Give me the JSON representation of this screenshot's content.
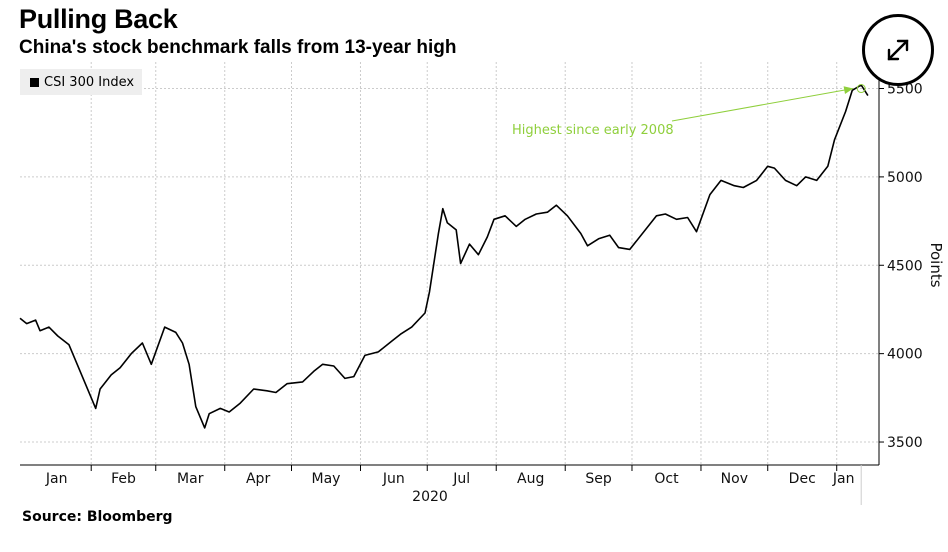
{
  "header": {
    "title": "Pulling Back",
    "subtitle": "China's stock benchmark falls from 13-year high"
  },
  "legend": {
    "label": "CSI 300 Index"
  },
  "footer": {
    "source": "Source: Bloomberg"
  },
  "controls": {
    "expand_icon": "expand-arrows-icon"
  },
  "colors": {
    "line": "#000000",
    "annotation": "#8fcf3c",
    "grid": "#cccccc",
    "legend_bg": "#eeeeee"
  },
  "chart_data": {
    "type": "line",
    "title": "Pulling Back",
    "subtitle": "China's stock benchmark falls from 13-year high",
    "xlabel": "2020",
    "ylabel": "Points",
    "x_ticks": [
      "Jan",
      "Feb",
      "Mar",
      "Apr",
      "May",
      "Jun",
      "Jul",
      "Aug",
      "Sep",
      "Oct",
      "Nov",
      "Dec",
      "Jan"
    ],
    "y_ticks": [
      3500,
      4000,
      4500,
      5000,
      5500
    ],
    "ylim": [
      3370,
      5650
    ],
    "y_axis_side": "right",
    "grid": true,
    "legend_position": "top-left",
    "annotation": {
      "text": "Highest since early 2008",
      "target_x": "2021-01-12",
      "target_y": 5500
    },
    "series": [
      {
        "name": "CSI 300 Index",
        "points": [
          [
            "2019-12-31",
            4200
          ],
          [
            "2020-01-03",
            4170
          ],
          [
            "2020-01-07",
            4190
          ],
          [
            "2020-01-09",
            4130
          ],
          [
            "2020-01-13",
            4150
          ],
          [
            "2020-01-17",
            4100
          ],
          [
            "2020-01-22",
            4050
          ],
          [
            "2020-02-03",
            3690
          ],
          [
            "2020-02-05",
            3800
          ],
          [
            "2020-02-10",
            3880
          ],
          [
            "2020-02-14",
            3920
          ],
          [
            "2020-02-19",
            4000
          ],
          [
            "2020-02-24",
            4060
          ],
          [
            "2020-02-28",
            3940
          ],
          [
            "2020-03-05",
            4150
          ],
          [
            "2020-03-10",
            4120
          ],
          [
            "2020-03-13",
            4060
          ],
          [
            "2020-03-16",
            3940
          ],
          [
            "2020-03-19",
            3700
          ],
          [
            "2020-03-23",
            3580
          ],
          [
            "2020-03-25",
            3660
          ],
          [
            "2020-03-30",
            3690
          ],
          [
            "2020-04-03",
            3670
          ],
          [
            "2020-04-08",
            3720
          ],
          [
            "2020-04-14",
            3800
          ],
          [
            "2020-04-20",
            3790
          ],
          [
            "2020-04-24",
            3780
          ],
          [
            "2020-04-29",
            3830
          ],
          [
            "2020-05-06",
            3840
          ],
          [
            "2020-05-11",
            3900
          ],
          [
            "2020-05-15",
            3940
          ],
          [
            "2020-05-20",
            3930
          ],
          [
            "2020-05-25",
            3860
          ],
          [
            "2020-05-29",
            3870
          ],
          [
            "2020-06-03",
            3990
          ],
          [
            "2020-06-09",
            4010
          ],
          [
            "2020-06-15",
            4070
          ],
          [
            "2020-06-19",
            4110
          ],
          [
            "2020-06-24",
            4150
          ],
          [
            "2020-06-30",
            4230
          ],
          [
            "2020-07-02",
            4350
          ],
          [
            "2020-07-06",
            4680
          ],
          [
            "2020-07-08",
            4820
          ],
          [
            "2020-07-10",
            4740
          ],
          [
            "2020-07-14",
            4700
          ],
          [
            "2020-07-16",
            4510
          ],
          [
            "2020-07-20",
            4620
          ],
          [
            "2020-07-24",
            4560
          ],
          [
            "2020-07-28",
            4660
          ],
          [
            "2020-07-31",
            4760
          ],
          [
            "2020-08-05",
            4780
          ],
          [
            "2020-08-10",
            4720
          ],
          [
            "2020-08-14",
            4760
          ],
          [
            "2020-08-19",
            4790
          ],
          [
            "2020-08-24",
            4800
          ],
          [
            "2020-08-28",
            4840
          ],
          [
            "2020-09-02",
            4780
          ],
          [
            "2020-09-08",
            4680
          ],
          [
            "2020-09-11",
            4610
          ],
          [
            "2020-09-16",
            4650
          ],
          [
            "2020-09-21",
            4670
          ],
          [
            "2020-09-25",
            4600
          ],
          [
            "2020-09-30",
            4590
          ],
          [
            "2020-10-12",
            4780
          ],
          [
            "2020-10-16",
            4790
          ],
          [
            "2020-10-21",
            4760
          ],
          [
            "2020-10-26",
            4770
          ],
          [
            "2020-10-30",
            4690
          ],
          [
            "2020-11-05",
            4900
          ],
          [
            "2020-11-10",
            4980
          ],
          [
            "2020-11-16",
            4950
          ],
          [
            "2020-11-20",
            4940
          ],
          [
            "2020-11-26",
            4980
          ],
          [
            "2020-12-01",
            5060
          ],
          [
            "2020-12-04",
            5050
          ],
          [
            "2020-12-09",
            4980
          ],
          [
            "2020-12-14",
            4950
          ],
          [
            "2020-12-18",
            5000
          ],
          [
            "2020-12-23",
            4980
          ],
          [
            "2020-12-28",
            5060
          ],
          [
            "2020-12-31",
            5210
          ],
          [
            "2021-01-05",
            5370
          ],
          [
            "2021-01-08",
            5490
          ],
          [
            "2021-01-12",
            5520
          ],
          [
            "2021-01-15",
            5460
          ]
        ]
      }
    ]
  }
}
